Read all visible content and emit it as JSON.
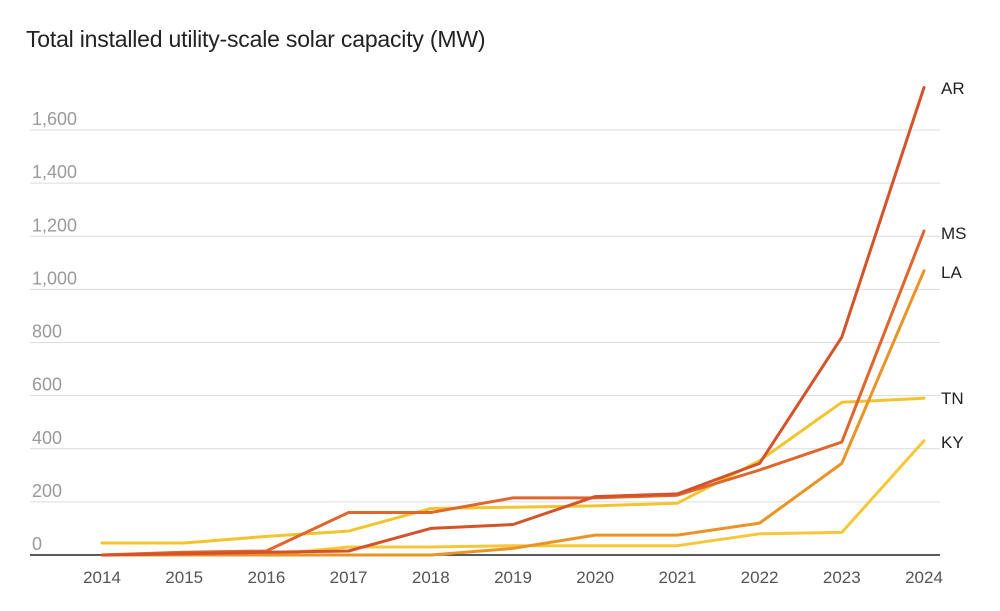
{
  "chart_data": {
    "type": "line",
    "title": "Total installed utility-scale solar capacity (MW)",
    "xlabel": "",
    "ylabel": "",
    "categories": [
      "2014",
      "2015",
      "2016",
      "2017",
      "2018",
      "2019",
      "2020",
      "2021",
      "2022",
      "2023",
      "2024"
    ],
    "ylim": [
      0,
      1700
    ],
    "yticks": [
      0,
      200,
      400,
      600,
      800,
      1000,
      1200,
      1400,
      1600
    ],
    "ytick_labels": [
      "0",
      "200",
      "400",
      "600",
      "800",
      "1,000",
      "1,200",
      "1,400",
      "1,600"
    ],
    "grid": true,
    "legend": "direct labels at right end of lines",
    "series": [
      {
        "name": "AR",
        "color": "#d4532a",
        "values": [
          0,
          5,
          10,
          15,
          100,
          115,
          220,
          230,
          345,
          820,
          1760
        ]
      },
      {
        "name": "MS",
        "color": "#e0662e",
        "values": [
          0,
          10,
          15,
          160,
          160,
          215,
          215,
          225,
          320,
          425,
          1220
        ]
      },
      {
        "name": "LA",
        "color": "#ea9428",
        "values": [
          0,
          0,
          0,
          0,
          0,
          25,
          75,
          75,
          120,
          345,
          1070
        ]
      },
      {
        "name": "TN",
        "color": "#f4c430",
        "values": [
          45,
          45,
          70,
          90,
          175,
          180,
          185,
          195,
          355,
          575,
          590
        ]
      },
      {
        "name": "KY",
        "color": "#f6c73a",
        "values": [
          0,
          0,
          0,
          30,
          30,
          35,
          35,
          35,
          80,
          85,
          430
        ]
      }
    ]
  }
}
